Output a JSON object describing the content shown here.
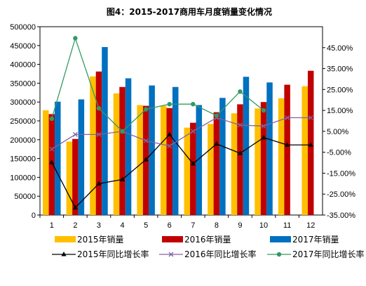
{
  "chart_data": {
    "type": "bar",
    "title": "图4：2015-2017商用车月度销量变化情况",
    "categories": [
      "1",
      "2",
      "3",
      "4",
      "5",
      "6",
      "7",
      "8",
      "9",
      "10",
      "11",
      "12"
    ],
    "y_left": {
      "ylim": [
        0,
        500000
      ],
      "ticks": [
        "0",
        "50000",
        "100000",
        "150000",
        "200000",
        "250000",
        "300000",
        "350000",
        "400000",
        "450000",
        "500000"
      ]
    },
    "y_right": {
      "ylim": [
        -35,
        55
      ],
      "ticks": [
        "-35.00%",
        "-25.00%",
        "-15.00%",
        "-5.00%",
        "5.00%",
        "15.00%",
        "25.00%",
        "35.00%",
        "45.00%"
      ]
    },
    "bar_series": [
      {
        "name": "2015年销量",
        "color": "#FFC000",
        "values": [
          278000,
          195000,
          368000,
          323000,
          292000,
          290000,
          232000,
          242000,
          270000,
          283000,
          310000,
          342000
        ]
      },
      {
        "name": "2016年销量",
        "color": "#C00000",
        "values": [
          268000,
          202000,
          381000,
          340000,
          290000,
          284000,
          245000,
          273000,
          294000,
          300000,
          346000,
          383000
        ]
      },
      {
        "name": "2017年销量",
        "color": "#0070C0",
        "values": [
          301000,
          307000,
          446000,
          363000,
          344000,
          340000,
          292000,
          311000,
          367000,
          352000,
          null,
          null
        ]
      }
    ],
    "line_series": [
      {
        "name": "2015年同比增长率",
        "color": "#000000",
        "marker": "triangle",
        "values": [
          -9.8,
          -31.5,
          -20.0,
          -18.0,
          -8.5,
          3.5,
          -10.5,
          -1.0,
          -5.5,
          2.0,
          -1.5,
          -1.5
        ]
      },
      {
        "name": "2016年同比增长率",
        "color": "#8064A2",
        "marker": "x",
        "values": [
          -3.5,
          3.5,
          3.5,
          5.0,
          0.5,
          -2.0,
          5.0,
          11.5,
          8.0,
          7.5,
          11.5,
          11.5
        ]
      },
      {
        "name": "2017年同比增长率",
        "color": "#339966",
        "marker": "circle",
        "values": [
          11.0,
          49.5,
          16.0,
          5.0,
          15.5,
          18.0,
          18.0,
          12.5,
          24.0,
          15.0,
          null,
          null
        ]
      }
    ]
  }
}
